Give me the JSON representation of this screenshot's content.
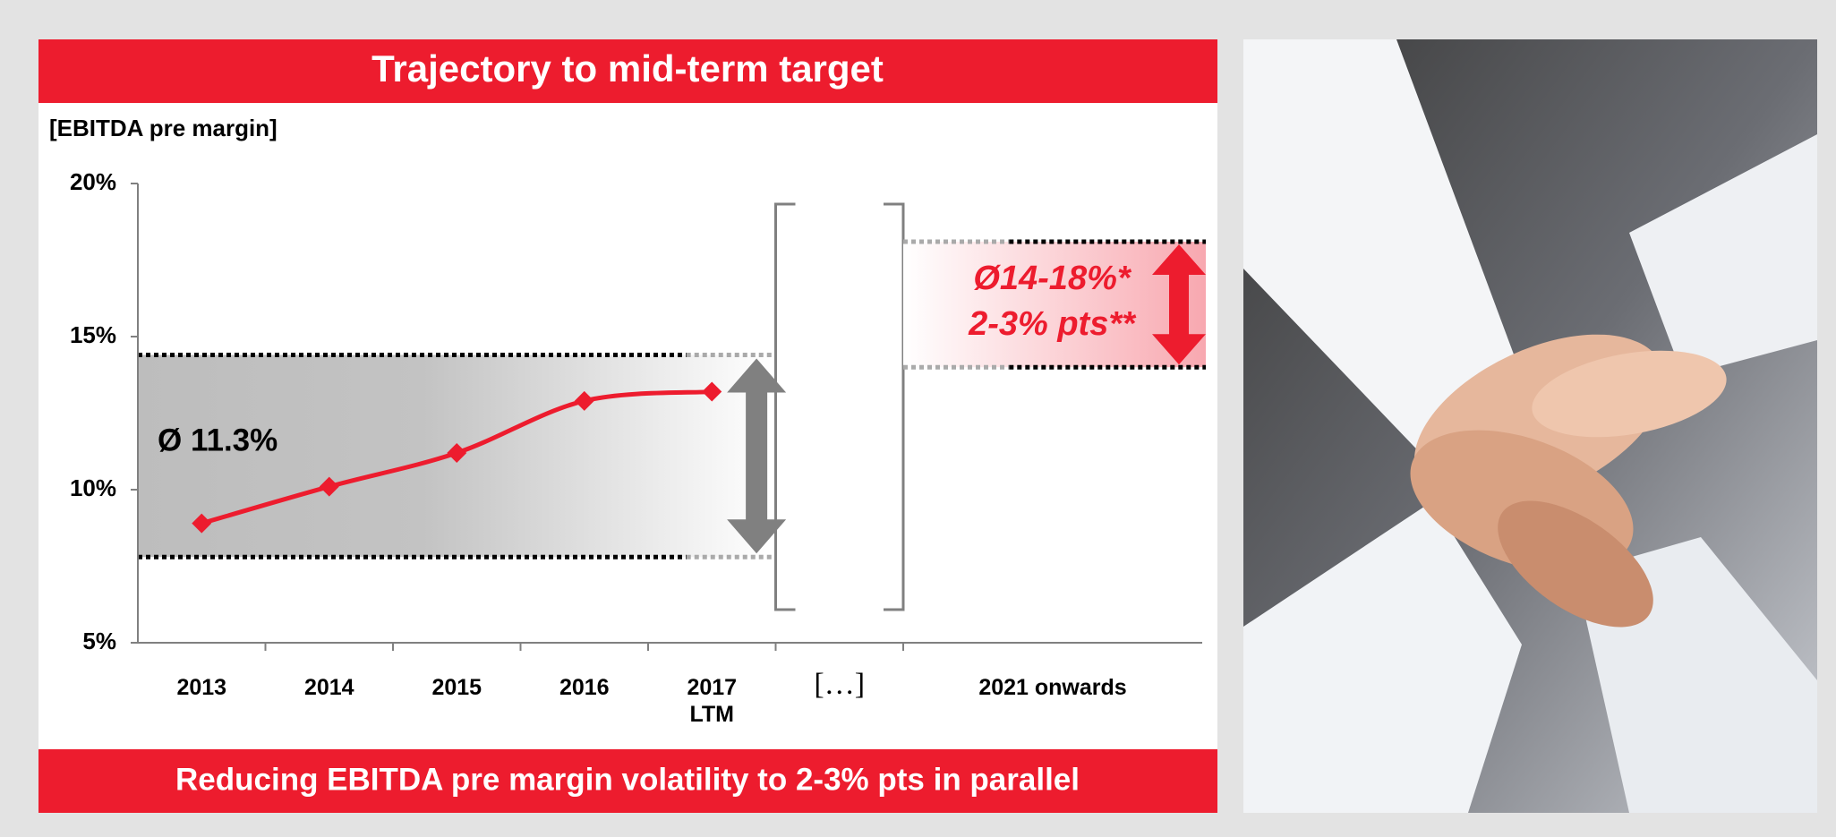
{
  "chart_data": {
    "type": "line",
    "title": "Trajectory to mid-term target",
    "y_label": "[EBITDA pre margin]",
    "categories": [
      "2013",
      "2014",
      "2015",
      "2016",
      "2017\nLTM",
      "[…]",
      "2021 onwards"
    ],
    "series": [
      {
        "name": "EBITDA pre margin",
        "color": "#ed1c2e",
        "values": [
          8.9,
          10.1,
          11.2,
          12.9,
          13.2,
          null,
          null
        ]
      }
    ],
    "ylim": [
      5,
      20
    ],
    "yticks": [
      {
        "value": 5,
        "label": "5%"
      },
      {
        "value": 10,
        "label": "10%"
      },
      {
        "value": 15,
        "label": "15%"
      },
      {
        "value": 20,
        "label": "20%"
      }
    ],
    "historical_range": [
      7.8,
      14.4
    ],
    "target_range": [
      14,
      18.1
    ],
    "annotations": {
      "historical_average": "Ø 11.3%",
      "target": "Ø14-18%*",
      "volatility": "2-3% pts**"
    },
    "footer": "Reducing EBITDA pre margin volatility to 2-3% pts in parallel"
  }
}
